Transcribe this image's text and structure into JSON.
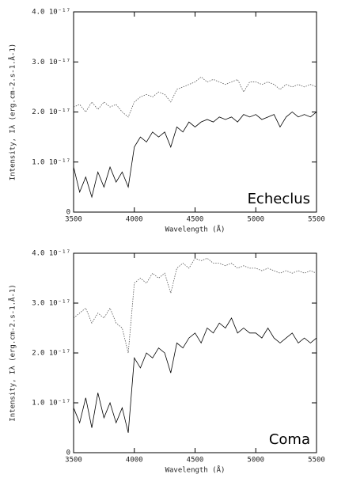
{
  "chart_data": [
    {
      "type": "line",
      "annotation": "Echeclus",
      "xlabel": "Wavelength (Å)",
      "ylabel": "Intensity, Iλ (erg.cm-2.s-1.Å-1)",
      "xlim": [
        3500,
        5500
      ],
      "xticks": [
        3500,
        4000,
        4500,
        5000,
        5500
      ],
      "ylim": [
        0,
        4e-17
      ],
      "yticks": [
        0,
        {
          "value": 1e-17,
          "label": "1.0 10⁻¹⁷"
        },
        {
          "value": 2e-17,
          "label": "2.0 10⁻¹⁷"
        },
        {
          "value": 3e-17,
          "label": "3.0 10⁻¹⁷"
        },
        {
          "value": 4e-17,
          "label": "4.0 10⁻¹⁷"
        }
      ],
      "x": [
        3500,
        3550,
        3600,
        3650,
        3700,
        3750,
        3800,
        3850,
        3900,
        3950,
        4000,
        4050,
        4100,
        4150,
        4200,
        4250,
        4300,
        4350,
        4400,
        4450,
        4500,
        4550,
        4600,
        4650,
        4700,
        4750,
        4800,
        4850,
        4900,
        4950,
        5000,
        5050,
        5100,
        5150,
        5200,
        5250,
        5300,
        5350,
        5400,
        5450,
        5500
      ],
      "series": [
        {
          "color": "#000000",
          "style": "solid",
          "values": [
            9e-18,
            4e-18,
            7e-18,
            3e-18,
            8e-18,
            5e-18,
            9e-18,
            6e-18,
            8e-18,
            5e-18,
            1.3e-17,
            1.5e-17,
            1.4e-17,
            1.6e-17,
            1.5e-17,
            1.6e-17,
            1.3e-17,
            1.7e-17,
            1.6e-17,
            1.8e-17,
            1.7e-17,
            1.8e-17,
            1.85e-17,
            1.8e-17,
            1.9e-17,
            1.85e-17,
            1.9e-17,
            1.8e-17,
            1.95e-17,
            1.9e-17,
            1.95e-17,
            1.85e-17,
            1.9e-17,
            1.95e-17,
            1.7e-17,
            1.9e-17,
            2e-17,
            1.9e-17,
            1.95e-17,
            1.9e-17,
            2e-17
          ]
        },
        {
          "color": "#555555",
          "style": "dotted",
          "values": [
            2.1e-17,
            2.15e-17,
            2e-17,
            2.2e-17,
            2.05e-17,
            2.2e-17,
            2.1e-17,
            2.15e-17,
            2e-17,
            1.9e-17,
            2.2e-17,
            2.3e-17,
            2.35e-17,
            2.3e-17,
            2.4e-17,
            2.35e-17,
            2.2e-17,
            2.45e-17,
            2.5e-17,
            2.55e-17,
            2.6e-17,
            2.7e-17,
            2.6e-17,
            2.65e-17,
            2.6e-17,
            2.55e-17,
            2.6e-17,
            2.65e-17,
            2.4e-17,
            2.6e-17,
            2.6e-17,
            2.55e-17,
            2.6e-17,
            2.55e-17,
            2.45e-17,
            2.55e-17,
            2.5e-17,
            2.55e-17,
            2.5e-17,
            2.55e-17,
            2.5e-17
          ]
        }
      ]
    },
    {
      "type": "line",
      "annotation": "Coma",
      "xlabel": "Wavelength (Å)",
      "ylabel": "Intensity, Iλ (erg.cm-2.s-1.Å-1)",
      "xlim": [
        3500,
        5500
      ],
      "xticks": [
        3500,
        4000,
        4500,
        5000,
        5500
      ],
      "ylim": [
        0,
        4e-17
      ],
      "yticks": [
        0,
        {
          "value": 1e-17,
          "label": "1.0 10⁻¹⁷"
        },
        {
          "value": 2e-17,
          "label": "2.0 10⁻¹⁷"
        },
        {
          "value": 3e-17,
          "label": "3.0 10⁻¹⁷"
        },
        {
          "value": 4e-17,
          "label": "4.0 10⁻¹⁷"
        }
      ],
      "x": [
        3500,
        3550,
        3600,
        3650,
        3700,
        3750,
        3800,
        3850,
        3900,
        3950,
        4000,
        4050,
        4100,
        4150,
        4200,
        4250,
        4300,
        4350,
        4400,
        4450,
        4500,
        4550,
        4600,
        4650,
        4700,
        4750,
        4800,
        4850,
        4900,
        4950,
        5000,
        5050,
        5100,
        5150,
        5200,
        5250,
        5300,
        5350,
        5400,
        5450,
        5500
      ],
      "series": [
        {
          "color": "#000000",
          "style": "solid",
          "values": [
            9e-18,
            6e-18,
            1.1e-17,
            5e-18,
            1.2e-17,
            7e-18,
            1e-17,
            6e-18,
            9e-18,
            4e-18,
            1.9e-17,
            1.7e-17,
            2e-17,
            1.9e-17,
            2.1e-17,
            2e-17,
            1.6e-17,
            2.2e-17,
            2.1e-17,
            2.3e-17,
            2.4e-17,
            2.2e-17,
            2.5e-17,
            2.4e-17,
            2.6e-17,
            2.5e-17,
            2.7e-17,
            2.4e-17,
            2.5e-17,
            2.4e-17,
            2.4e-17,
            2.3e-17,
            2.5e-17,
            2.3e-17,
            2.2e-17,
            2.3e-17,
            2.4e-17,
            2.2e-17,
            2.3e-17,
            2.2e-17,
            2.3e-17
          ]
        },
        {
          "color": "#555555",
          "style": "dotted",
          "values": [
            2.7e-17,
            2.8e-17,
            2.9e-17,
            2.6e-17,
            2.8e-17,
            2.7e-17,
            2.9e-17,
            2.6e-17,
            2.5e-17,
            2e-17,
            3.4e-17,
            3.5e-17,
            3.4e-17,
            3.6e-17,
            3.5e-17,
            3.6e-17,
            3.2e-17,
            3.7e-17,
            3.8e-17,
            3.7e-17,
            3.9e-17,
            3.85e-17,
            3.9e-17,
            3.8e-17,
            3.8e-17,
            3.75e-17,
            3.8e-17,
            3.7e-17,
            3.75e-17,
            3.7e-17,
            3.7e-17,
            3.65e-17,
            3.7e-17,
            3.65e-17,
            3.6e-17,
            3.65e-17,
            3.6e-17,
            3.65e-17,
            3.6e-17,
            3.65e-17,
            3.6e-17
          ]
        }
      ]
    }
  ]
}
